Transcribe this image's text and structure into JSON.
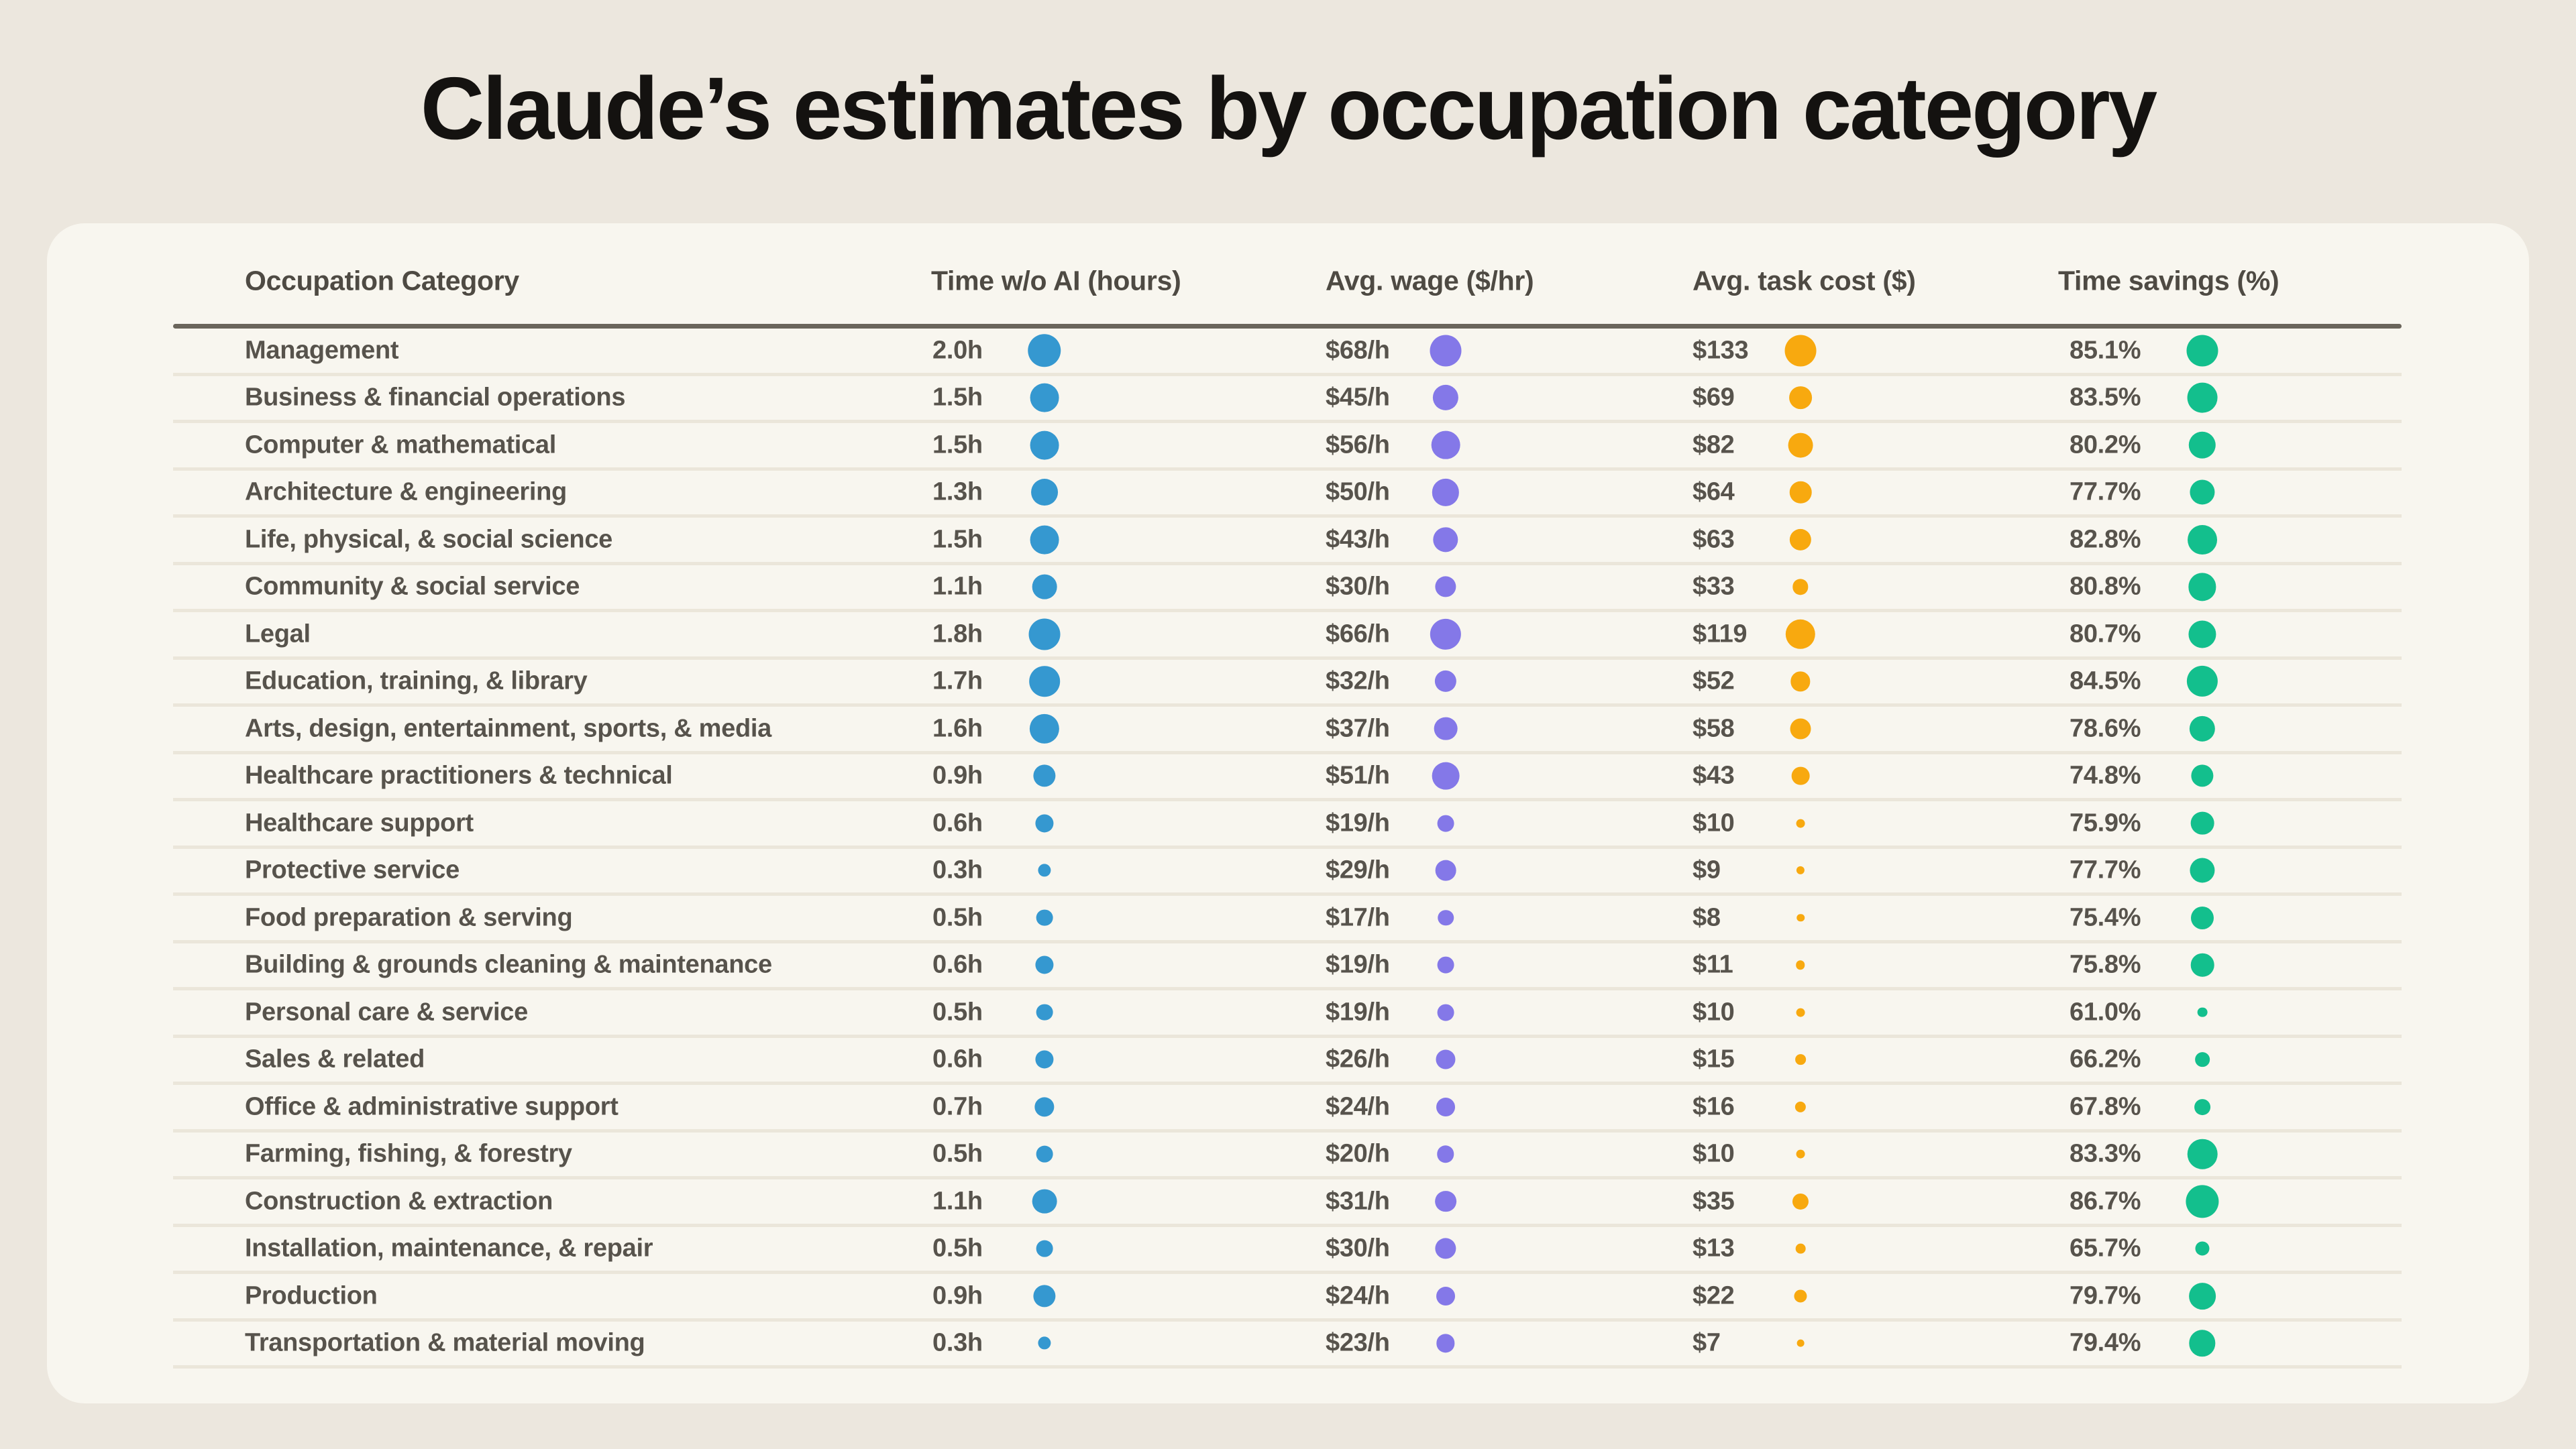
{
  "title": "Claude’s estimates by occupation category",
  "colors": {
    "time_dot": "#3598d0",
    "wage_dot": "#8478e8",
    "task_cost_dot": "#f8a90f",
    "time_savings_dot": "#13bf8d",
    "card_background": "#f8f6ef",
    "page_background": "#ece7de"
  },
  "chart_data": {
    "type": "table",
    "title": "Claude’s estimates by occupation category",
    "columns": [
      "Occupation Category",
      "Time w/o AI (hours)",
      "Avg. wage ($/hr)",
      "Avg. task cost ($)",
      "Time savings (%)"
    ],
    "legend_note": "dot size is proportional to column value",
    "rows": [
      {
        "occupation": "Management",
        "time_label": "2.0h",
        "time_wo_ai_hours": 2.0,
        "wage_label": "$68/h",
        "avg_wage": 68,
        "task_cost_label": "$133",
        "avg_task_cost": 133,
        "savings_label": "85.1%",
        "time_savings_pct": 85.1
      },
      {
        "occupation": "Business & financial operations",
        "time_label": "1.5h",
        "time_wo_ai_hours": 1.5,
        "wage_label": "$45/h",
        "avg_wage": 45,
        "task_cost_label": "$69",
        "avg_task_cost": 69,
        "savings_label": "83.5%",
        "time_savings_pct": 83.5
      },
      {
        "occupation": "Computer & mathematical",
        "time_label": "1.5h",
        "time_wo_ai_hours": 1.5,
        "wage_label": "$56/h",
        "avg_wage": 56,
        "task_cost_label": "$82",
        "avg_task_cost": 82,
        "savings_label": "80.2%",
        "time_savings_pct": 80.2
      },
      {
        "occupation": "Architecture & engineering",
        "time_label": "1.3h",
        "time_wo_ai_hours": 1.3,
        "wage_label": "$50/h",
        "avg_wage": 50,
        "task_cost_label": "$64",
        "avg_task_cost": 64,
        "savings_label": "77.7%",
        "time_savings_pct": 77.7
      },
      {
        "occupation": "Life, physical, & social science",
        "time_label": "1.5h",
        "time_wo_ai_hours": 1.5,
        "wage_label": "$43/h",
        "avg_wage": 43,
        "task_cost_label": "$63",
        "avg_task_cost": 63,
        "savings_label": "82.8%",
        "time_savings_pct": 82.8
      },
      {
        "occupation": "Community & social service",
        "time_label": "1.1h",
        "time_wo_ai_hours": 1.1,
        "wage_label": "$30/h",
        "avg_wage": 30,
        "task_cost_label": "$33",
        "avg_task_cost": 33,
        "savings_label": "80.8%",
        "time_savings_pct": 80.8
      },
      {
        "occupation": "Legal",
        "time_label": "1.8h",
        "time_wo_ai_hours": 1.8,
        "wage_label": "$66/h",
        "avg_wage": 66,
        "task_cost_label": "$119",
        "avg_task_cost": 119,
        "savings_label": "80.7%",
        "time_savings_pct": 80.7
      },
      {
        "occupation": "Education, training, & library",
        "time_label": "1.7h",
        "time_wo_ai_hours": 1.7,
        "wage_label": "$32/h",
        "avg_wage": 32,
        "task_cost_label": "$52",
        "avg_task_cost": 52,
        "savings_label": "84.5%",
        "time_savings_pct": 84.5
      },
      {
        "occupation": "Arts, design, entertainment, sports, & media",
        "time_label": "1.6h",
        "time_wo_ai_hours": 1.6,
        "wage_label": "$37/h",
        "avg_wage": 37,
        "task_cost_label": "$58",
        "avg_task_cost": 58,
        "savings_label": "78.6%",
        "time_savings_pct": 78.6
      },
      {
        "occupation": "Healthcare practitioners & technical",
        "time_label": "0.9h",
        "time_wo_ai_hours": 0.9,
        "wage_label": "$51/h",
        "avg_wage": 51,
        "task_cost_label": "$43",
        "avg_task_cost": 43,
        "savings_label": "74.8%",
        "time_savings_pct": 74.8
      },
      {
        "occupation": "Healthcare support",
        "time_label": "0.6h",
        "time_wo_ai_hours": 0.6,
        "wage_label": "$19/h",
        "avg_wage": 19,
        "task_cost_label": "$10",
        "avg_task_cost": 10,
        "savings_label": "75.9%",
        "time_savings_pct": 75.9
      },
      {
        "occupation": "Protective service",
        "time_label": "0.3h",
        "time_wo_ai_hours": 0.3,
        "wage_label": "$29/h",
        "avg_wage": 29,
        "task_cost_label": "$9",
        "avg_task_cost": 9,
        "savings_label": "77.7%",
        "time_savings_pct": 77.7
      },
      {
        "occupation": "Food preparation & serving",
        "time_label": "0.5h",
        "time_wo_ai_hours": 0.5,
        "wage_label": "$17/h",
        "avg_wage": 17,
        "task_cost_label": "$8",
        "avg_task_cost": 8,
        "savings_label": "75.4%",
        "time_savings_pct": 75.4
      },
      {
        "occupation": "Building & grounds cleaning & maintenance",
        "time_label": "0.6h",
        "time_wo_ai_hours": 0.6,
        "wage_label": "$19/h",
        "avg_wage": 19,
        "task_cost_label": "$11",
        "avg_task_cost": 11,
        "savings_label": "75.8%",
        "time_savings_pct": 75.8
      },
      {
        "occupation": "Personal care & service",
        "time_label": "0.5h",
        "time_wo_ai_hours": 0.5,
        "wage_label": "$19/h",
        "avg_wage": 19,
        "task_cost_label": "$10",
        "avg_task_cost": 10,
        "savings_label": "61.0%",
        "time_savings_pct": 61.0
      },
      {
        "occupation": "Sales & related",
        "time_label": "0.6h",
        "time_wo_ai_hours": 0.6,
        "wage_label": "$26/h",
        "avg_wage": 26,
        "task_cost_label": "$15",
        "avg_task_cost": 15,
        "savings_label": "66.2%",
        "time_savings_pct": 66.2
      },
      {
        "occupation": "Office & administrative support",
        "time_label": "0.7h",
        "time_wo_ai_hours": 0.7,
        "wage_label": "$24/h",
        "avg_wage": 24,
        "task_cost_label": "$16",
        "avg_task_cost": 16,
        "savings_label": "67.8%",
        "time_savings_pct": 67.8
      },
      {
        "occupation": "Farming, fishing, & forestry",
        "time_label": "0.5h",
        "time_wo_ai_hours": 0.5,
        "wage_label": "$20/h",
        "avg_wage": 20,
        "task_cost_label": "$10",
        "avg_task_cost": 10,
        "savings_label": "83.3%",
        "time_savings_pct": 83.3
      },
      {
        "occupation": "Construction & extraction",
        "time_label": "1.1h",
        "time_wo_ai_hours": 1.1,
        "wage_label": "$31/h",
        "avg_wage": 31,
        "task_cost_label": "$35",
        "avg_task_cost": 35,
        "savings_label": "86.7%",
        "time_savings_pct": 86.7
      },
      {
        "occupation": "Installation, maintenance, & repair",
        "time_label": "0.5h",
        "time_wo_ai_hours": 0.5,
        "wage_label": "$30/h",
        "avg_wage": 30,
        "task_cost_label": "$13",
        "avg_task_cost": 13,
        "savings_label": "65.7%",
        "time_savings_pct": 65.7
      },
      {
        "occupation": "Production",
        "time_label": "0.9h",
        "time_wo_ai_hours": 0.9,
        "wage_label": "$24/h",
        "avg_wage": 24,
        "task_cost_label": "$22",
        "avg_task_cost": 22,
        "savings_label": "79.7%",
        "time_savings_pct": 79.7
      },
      {
        "occupation": "Transportation & material moving",
        "time_label": "0.3h",
        "time_wo_ai_hours": 0.3,
        "wage_label": "$23/h",
        "avg_wage": 23,
        "task_cost_label": "$7",
        "avg_task_cost": 7,
        "savings_label": "79.4%",
        "time_savings_pct": 79.4
      }
    ]
  }
}
